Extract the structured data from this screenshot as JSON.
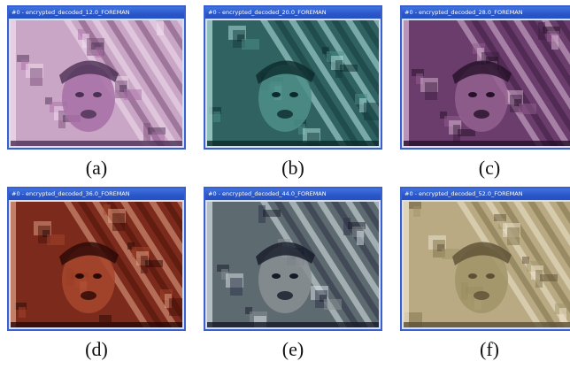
{
  "panels": [
    {
      "title": "#0 - encrypted_decoded_12.0_FOREMAN",
      "caption": "(a)",
      "palette": {
        "base": "#caa6c6",
        "dark": "#4a3052",
        "light": "#f2e0ef",
        "mid": "#a76fa6",
        "stripe": "#7a4e79"
      }
    },
    {
      "title": "#0 - encrypted_decoded_20.0_FOREMAN",
      "caption": "(b)",
      "palette": {
        "base": "#2f6260",
        "dark": "#0c2a2c",
        "light": "#b8e6e2",
        "mid": "#4d8f8a",
        "stripe": "#143a3c"
      }
    },
    {
      "title": "#0 - encrypted_decoded_28.0_FOREMAN",
      "caption": "(c)",
      "palette": {
        "base": "#6b3d6d",
        "dark": "#241028",
        "light": "#d9b8d4",
        "mid": "#93608f",
        "stripe": "#3d1d40"
      }
    },
    {
      "title": "#0 - encrypted_decoded_36.0_FOREMAN",
      "caption": "(d)",
      "palette": {
        "base": "#7b2a1c",
        "dark": "#2a0805",
        "light": "#e3a58a",
        "mid": "#a8462d",
        "stripe": "#4a1208"
      }
    },
    {
      "title": "#0 - encrypted_decoded_44.0_FOREMAN",
      "caption": "(e)",
      "palette": {
        "base": "#5d6a70",
        "dark": "#151a28",
        "light": "#dce5ea",
        "mid": "#8a8f93",
        "stripe": "#2b2f45"
      }
    },
    {
      "title": "#0 - encrypted_decoded_52.0_FOREMAN",
      "caption": "(f)",
      "palette": {
        "base": "#b9aa84",
        "dark": "#5d5034",
        "light": "#efe6cf",
        "mid": "#a09466",
        "stripe": "#7d7048"
      }
    }
  ]
}
